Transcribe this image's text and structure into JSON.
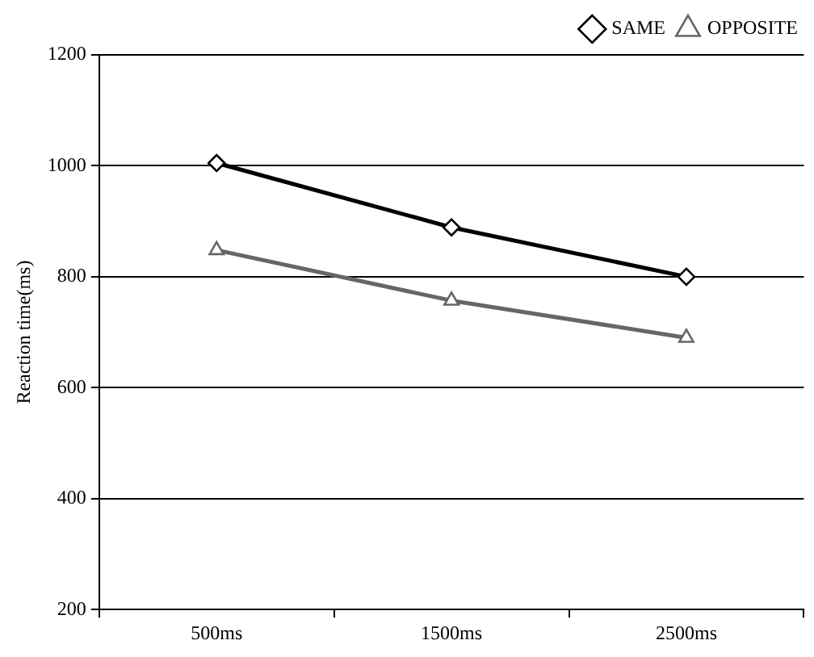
{
  "chart_data": {
    "type": "line",
    "ylabel": "Reaction time(ms)",
    "categories": [
      "500ms",
      "1500ms",
      "2500ms"
    ],
    "series": [
      {
        "name": "SAME",
        "color": "#000000",
        "values": [
          1005,
          889,
          800
        ],
        "marker": "diamond"
      },
      {
        "name": "OPPOSITE",
        "color": "#666666",
        "values": [
          848,
          757,
          690
        ],
        "marker": "triangle"
      }
    ],
    "ylim": [
      200,
      1200
    ],
    "yticks": [
      200,
      400,
      600,
      800,
      1000,
      1200
    ],
    "grid": "y",
    "legend": "top",
    "line_style": "solid"
  }
}
